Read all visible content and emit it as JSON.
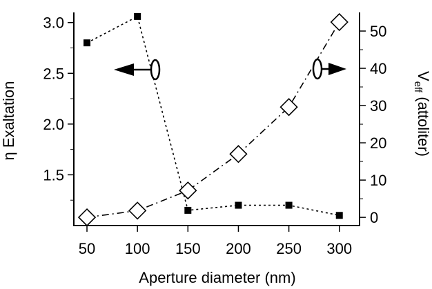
{
  "chart_data": {
    "type": "line",
    "title": "",
    "xlabel": "Aperture diameter (nm)",
    "ylabel_left": "η Exaltation",
    "ylabel_right": {
      "main": "V",
      "subscript": "eff",
      "rest": " (attoliter)"
    },
    "x_ticks": [
      50,
      100,
      150,
      200,
      250,
      300
    ],
    "x_range": [
      37,
      320
    ],
    "y_left_ticks": [
      "1.5",
      "2.0",
      "2.5",
      "3.0"
    ],
    "y_left_range": [
      1.0,
      3.1
    ],
    "y_right_ticks": [
      "0",
      "10",
      "20",
      "30",
      "40",
      "50"
    ],
    "y_right_range": [
      -2.2,
      55
    ],
    "grid": false,
    "legend": "none",
    "series": [
      {
        "axis": "left",
        "marker": "filled-square",
        "line": "dotted",
        "x": [
          50,
          100,
          150,
          200,
          250,
          300
        ],
        "y": [
          2.8,
          3.06,
          1.15,
          1.2,
          1.2,
          1.1
        ]
      },
      {
        "axis": "right",
        "marker": "open-diamond",
        "line": "dash-dot",
        "x": [
          50,
          100,
          150,
          200,
          250,
          300
        ],
        "y": [
          0,
          1.8,
          7.2,
          17.0,
          29.6,
          52.4
        ]
      }
    ],
    "annotations": [
      {
        "kind": "arrow-left-to-left-axis",
        "series": 0
      },
      {
        "kind": "arrow-right-to-right-axis",
        "series": 1
      }
    ]
  }
}
